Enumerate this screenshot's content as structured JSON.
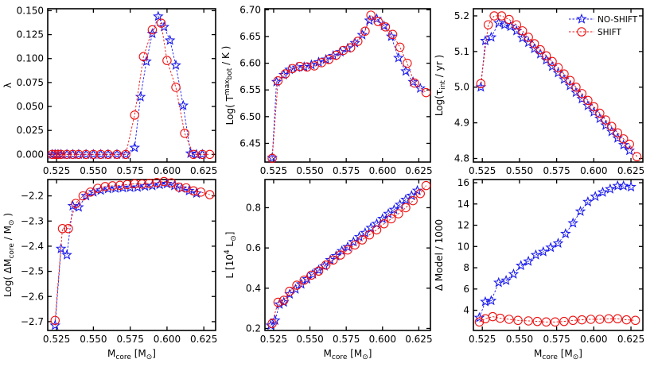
{
  "chart_data": [
    {
      "type": "line",
      "panel": "top-left",
      "title": "",
      "xlabel": "M_core [M_⊙]",
      "ylabel": "λ",
      "xlim": [
        0.519,
        0.633
      ],
      "ylim": [
        -0.008,
        0.152
      ],
      "xticks": [
        0.525,
        0.55,
        0.575,
        0.6,
        0.625
      ],
      "xticklabels": [
        "0.525",
        "0.550",
        "0.575",
        "0.600",
        "0.625"
      ],
      "yticks": [
        0.0,
        0.025,
        0.05,
        0.075,
        0.1,
        0.125,
        0.15
      ],
      "yticklabels": [
        "0.000",
        "0.025",
        "0.050",
        "0.075",
        "0.100",
        "0.125",
        "0.150"
      ],
      "show_xlabel": false,
      "series": [
        {
          "name": "NO-SHIFT",
          "x": [
            0.522,
            0.524,
            0.526,
            0.528,
            0.532,
            0.536,
            0.54,
            0.545,
            0.55,
            0.555,
            0.56,
            0.566,
            0.572,
            0.578,
            0.582,
            0.586,
            0.59,
            0.594,
            0.598,
            0.602,
            0.606,
            0.611,
            0.616,
            0.62,
            0.624
          ],
          "y": [
            0,
            0,
            0,
            0,
            0,
            0,
            0,
            0,
            0,
            0,
            0,
            0,
            0,
            0.007,
            0.06,
            0.097,
            0.126,
            0.144,
            0.133,
            0.119,
            0.093,
            0.051,
            0.001,
            0,
            0
          ]
        },
        {
          "name": "SHIFT",
          "x": [
            0.522,
            0.524,
            0.526,
            0.528,
            0.532,
            0.536,
            0.54,
            0.545,
            0.55,
            0.555,
            0.56,
            0.566,
            0.572,
            0.578,
            0.584,
            0.59,
            0.596,
            0.6,
            0.606,
            0.612,
            0.618,
            0.624,
            0.629
          ],
          "y": [
            0,
            0,
            0,
            0,
            0,
            0,
            0,
            0,
            0,
            0,
            0,
            0,
            0,
            0.041,
            0.102,
            0.13,
            0.137,
            0.098,
            0.07,
            0.022,
            0,
            0,
            0
          ]
        }
      ]
    },
    {
      "type": "line",
      "panel": "top-middle",
      "xlabel": "M_core [M_⊙]",
      "ylabel": "Log( T_bot^max / K )",
      "xlim": [
        0.519,
        0.633
      ],
      "ylim": [
        6.415,
        6.702
      ],
      "xticks": [
        0.525,
        0.55,
        0.575,
        0.6,
        0.625
      ],
      "xticklabels": [
        "0.525",
        "0.550",
        "0.575",
        "0.600",
        "0.625"
      ],
      "yticks": [
        6.45,
        6.5,
        6.55,
        6.6,
        6.65,
        6.7
      ],
      "yticklabels": [
        "6.45",
        "6.50",
        "6.55",
        "6.60",
        "6.65",
        "6.70"
      ],
      "show_xlabel": false,
      "series": [
        {
          "name": "NO-SHIFT",
          "x": [
            0.524,
            0.527,
            0.532,
            0.536,
            0.541,
            0.546,
            0.551,
            0.556,
            0.561,
            0.566,
            0.571,
            0.576,
            0.581,
            0.586,
            0.591,
            0.596,
            0.601,
            0.606,
            0.611,
            0.616,
            0.621,
            0.626
          ],
          "y": [
            6.423,
            6.565,
            6.578,
            6.588,
            6.592,
            6.593,
            6.597,
            6.602,
            6.607,
            6.614,
            6.621,
            6.628,
            6.638,
            6.653,
            6.68,
            6.683,
            6.67,
            6.65,
            6.61,
            6.585,
            6.565,
            6.553
          ]
        },
        {
          "name": "SHIFT",
          "x": [
            0.524,
            0.528,
            0.533,
            0.538,
            0.543,
            0.548,
            0.553,
            0.558,
            0.563,
            0.568,
            0.573,
            0.578,
            0.583,
            0.588,
            0.592,
            0.597,
            0.602,
            0.607,
            0.612,
            0.617,
            0.622,
            0.63
          ],
          "y": [
            6.422,
            6.567,
            6.58,
            6.59,
            6.594,
            6.593,
            6.595,
            6.601,
            6.607,
            6.615,
            6.624,
            6.629,
            6.641,
            6.66,
            6.69,
            6.678,
            6.668,
            6.654,
            6.63,
            6.6,
            6.563,
            6.545
          ]
        }
      ]
    },
    {
      "type": "line",
      "panel": "top-right",
      "xlabel": "M_core [M_⊙]",
      "ylabel": "Log(τ_int / yr )",
      "xlim": [
        0.519,
        0.633
      ],
      "ylim": [
        4.79,
        5.22
      ],
      "xticks": [
        0.525,
        0.55,
        0.575,
        0.6,
        0.625
      ],
      "xticklabels": [
        "0.525",
        "0.550",
        "0.575",
        "0.600",
        "0.625"
      ],
      "yticks": [
        4.8,
        4.9,
        5.0,
        5.1,
        5.2
      ],
      "yticklabels": [
        "4.8",
        "4.9",
        "5.0",
        "5.1",
        "5.2"
      ],
      "show_xlabel": false,
      "legend": {
        "location": "top-right",
        "entries": [
          "NO-SHIFT",
          "SHIFT"
        ]
      },
      "series": [
        {
          "name": "NO-SHIFT",
          "x": [
            0.524,
            0.527,
            0.531,
            0.536,
            0.54,
            0.544,
            0.548,
            0.552,
            0.556,
            0.56,
            0.564,
            0.568,
            0.572,
            0.576,
            0.58,
            0.584,
            0.588,
            0.592,
            0.596,
            0.6,
            0.604,
            0.608,
            0.612,
            0.616,
            0.62,
            0.624
          ],
          "y": [
            5.0,
            5.13,
            5.14,
            5.18,
            5.175,
            5.17,
            5.158,
            5.138,
            5.125,
            5.108,
            5.093,
            5.076,
            5.058,
            5.04,
            5.022,
            5.004,
            4.985,
            4.967,
            4.948,
            4.93,
            4.912,
            4.893,
            4.875,
            4.857,
            4.838,
            4.822
          ]
        },
        {
          "name": "SHIFT",
          "x": [
            0.524,
            0.529,
            0.533,
            0.538,
            0.543,
            0.548,
            0.552,
            0.556,
            0.56,
            0.564,
            0.568,
            0.572,
            0.576,
            0.58,
            0.584,
            0.588,
            0.592,
            0.596,
            0.6,
            0.604,
            0.608,
            0.612,
            0.616,
            0.62,
            0.624,
            0.629
          ],
          "y": [
            5.01,
            5.175,
            5.2,
            5.2,
            5.19,
            5.175,
            5.158,
            5.14,
            5.122,
            5.105,
            5.088,
            5.072,
            5.055,
            5.037,
            5.019,
            5.0,
            4.982,
            4.963,
            4.945,
            4.927,
            4.908,
            4.89,
            4.872,
            4.855,
            4.84,
            4.805
          ]
        }
      ]
    },
    {
      "type": "line",
      "panel": "bottom-left",
      "xlabel": "M_core [M_⊙]",
      "ylabel": "Log( ΔM_core / M_⊙ )",
      "xlim": [
        0.519,
        0.633
      ],
      "ylim": [
        -2.735,
        -2.135
      ],
      "xticks": [
        0.525,
        0.55,
        0.575,
        0.6,
        0.625
      ],
      "xticklabels": [
        "0.525",
        "0.550",
        "0.575",
        "0.600",
        "0.625"
      ],
      "yticks": [
        -2.7,
        -2.6,
        -2.5,
        -2.4,
        -2.3,
        -2.2
      ],
      "yticklabels": [
        "−2.7",
        "−2.6",
        "−2.5",
        "−2.4",
        "−2.3",
        "−2.2"
      ],
      "show_xlabel": true,
      "series": [
        {
          "name": "NO-SHIFT",
          "x": [
            0.524,
            0.528,
            0.532,
            0.536,
            0.54,
            0.545,
            0.55,
            0.555,
            0.56,
            0.565,
            0.57,
            0.575,
            0.58,
            0.585,
            0.59,
            0.595,
            0.6,
            0.605,
            0.61,
            0.615,
            0.62
          ],
          "y": [
            -2.715,
            -2.41,
            -2.435,
            -2.24,
            -2.245,
            -2.2,
            -2.185,
            -2.178,
            -2.172,
            -2.17,
            -2.168,
            -2.167,
            -2.166,
            -2.162,
            -2.16,
            -2.155,
            -2.152,
            -2.16,
            -2.17,
            -2.18,
            -2.19
          ]
        },
        {
          "name": "SHIFT",
          "x": [
            0.524,
            0.529,
            0.533,
            0.538,
            0.543,
            0.548,
            0.553,
            0.558,
            0.563,
            0.568,
            0.573,
            0.578,
            0.583,
            0.588,
            0.593,
            0.598,
            0.603,
            0.608,
            0.613,
            0.618,
            0.623,
            0.629
          ],
          "y": [
            -2.695,
            -2.33,
            -2.33,
            -2.23,
            -2.2,
            -2.185,
            -2.17,
            -2.163,
            -2.16,
            -2.158,
            -2.155,
            -2.152,
            -2.153,
            -2.15,
            -2.147,
            -2.143,
            -2.148,
            -2.165,
            -2.168,
            -2.18,
            -2.185,
            -2.195
          ]
        }
      ]
    },
    {
      "type": "line",
      "panel": "bottom-middle",
      "xlabel": "M_core [M_⊙]",
      "ylabel": "L [10^4 L_⊙]",
      "xlim": [
        0.519,
        0.633
      ],
      "ylim": [
        0.19,
        0.94
      ],
      "xticks": [
        0.525,
        0.55,
        0.575,
        0.6,
        0.625
      ],
      "xticklabels": [
        "0.525",
        "0.550",
        "0.575",
        "0.600",
        "0.625"
      ],
      "yticks": [
        0.2,
        0.4,
        0.6,
        0.8
      ],
      "yticklabels": [
        "0.2",
        "0.4",
        "0.6",
        "0.8"
      ],
      "show_xlabel": true,
      "series": [
        {
          "name": "NO-SHIFT",
          "x": [
            0.523,
            0.526,
            0.529,
            0.532,
            0.536,
            0.54,
            0.544,
            0.548,
            0.552,
            0.556,
            0.56,
            0.564,
            0.568,
            0.572,
            0.576,
            0.58,
            0.584,
            0.588,
            0.592,
            0.596,
            0.6,
            0.604,
            0.608,
            0.612,
            0.616,
            0.62,
            0.624
          ],
          "y": [
            0.215,
            0.24,
            0.32,
            0.33,
            0.37,
            0.395,
            0.42,
            0.445,
            0.47,
            0.49,
            0.51,
            0.54,
            0.56,
            0.585,
            0.605,
            0.63,
            0.655,
            0.675,
            0.7,
            0.72,
            0.745,
            0.77,
            0.79,
            0.815,
            0.84,
            0.86,
            0.885
          ]
        },
        {
          "name": "SHIFT",
          "x": [
            0.524,
            0.528,
            0.532,
            0.536,
            0.541,
            0.546,
            0.551,
            0.556,
            0.561,
            0.566,
            0.571,
            0.576,
            0.581,
            0.586,
            0.591,
            0.596,
            0.601,
            0.606,
            0.611,
            0.616,
            0.621,
            0.626,
            0.63
          ],
          "y": [
            0.225,
            0.33,
            0.34,
            0.385,
            0.415,
            0.44,
            0.465,
            0.485,
            0.515,
            0.54,
            0.565,
            0.59,
            0.615,
            0.64,
            0.665,
            0.69,
            0.72,
            0.745,
            0.77,
            0.8,
            0.835,
            0.87,
            0.91
          ]
        }
      ]
    },
    {
      "type": "line",
      "panel": "bottom-right",
      "xlabel": "M_core [M_⊙]",
      "ylabel": "Δ Model / 1000",
      "xlim": [
        0.519,
        0.633
      ],
      "ylim": [
        2.1,
        16.3
      ],
      "xticks": [
        0.525,
        0.55,
        0.575,
        0.6,
        0.625
      ],
      "xticklabels": [
        "0.525",
        "0.550",
        "0.575",
        "0.600",
        "0.625"
      ],
      "yticks": [
        4,
        6,
        8,
        10,
        12,
        14,
        16
      ],
      "yticklabels": [
        "4",
        "6",
        "8",
        "10",
        "12",
        "14",
        "16"
      ],
      "show_xlabel": true,
      "series": [
        {
          "name": "NO-SHIFT",
          "x": [
            0.523,
            0.527,
            0.531,
            0.536,
            0.541,
            0.546,
            0.551,
            0.556,
            0.561,
            0.566,
            0.571,
            0.576,
            0.581,
            0.586,
            0.591,
            0.596,
            0.601,
            0.606,
            0.611,
            0.616,
            0.62,
            0.625
          ],
          "y": [
            3.3,
            4.8,
            4.9,
            6.6,
            6.8,
            7.4,
            8.2,
            8.6,
            9.2,
            9.5,
            9.9,
            10.3,
            11.2,
            12.2,
            13.3,
            14.2,
            14.7,
            15.1,
            15.4,
            15.7,
            15.7,
            15.6
          ]
        },
        {
          "name": "SHIFT",
          "x": [
            0.523,
            0.527,
            0.532,
            0.537,
            0.543,
            0.549,
            0.556,
            0.562,
            0.568,
            0.574,
            0.58,
            0.586,
            0.592,
            0.598,
            0.604,
            0.61,
            0.616,
            0.622,
            0.628
          ],
          "y": [
            2.9,
            3.2,
            3.4,
            3.25,
            3.15,
            3.05,
            3.0,
            2.95,
            2.9,
            2.9,
            2.95,
            3.05,
            3.1,
            3.15,
            3.15,
            3.2,
            3.2,
            3.1,
            3.05
          ]
        }
      ]
    }
  ],
  "style": {
    "no_shift_color": "#1a1aee",
    "shift_color": "#ee1111"
  }
}
